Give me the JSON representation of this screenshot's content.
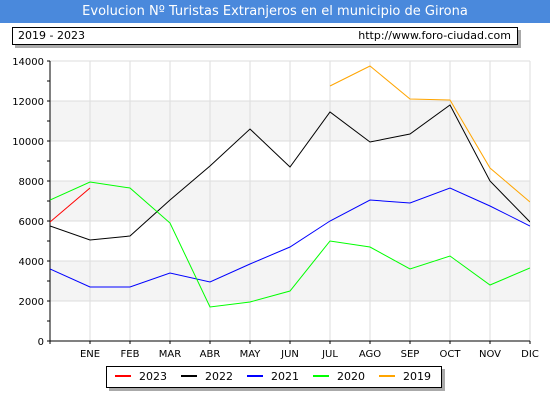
{
  "header": {
    "title": "Evolucion Nº Turistas Extranjeros en el municipio de Girona",
    "period": "2019 - 2023",
    "url": "http://www.foro-ciudad.com"
  },
  "chart_data": {
    "type": "line",
    "title": "Evolucion Nº Turistas Extranjeros en el municipio de Girona",
    "categories": [
      "ENE",
      "FEB",
      "MAR",
      "ABR",
      "MAY",
      "JUN",
      "JUL",
      "AGO",
      "SEP",
      "OCT",
      "NOV",
      "DIC"
    ],
    "y_ticks": [
      "0",
      "2000",
      "4000",
      "6000",
      "8000",
      "10000",
      "12000",
      "14000"
    ],
    "ylim": [
      0,
      14000
    ],
    "grid": true,
    "legend_position": "bottom",
    "series": [
      {
        "name": "2023",
        "color": "#ff0000",
        "x": [
          "",
          "ENE"
        ],
        "values": [
          5950,
          7650
        ]
      },
      {
        "name": "2022",
        "color": "#000000",
        "x": [
          "",
          "ENE",
          "FEB",
          "MAR",
          "ABR",
          "MAY",
          "JUN",
          "JUL",
          "AGO",
          "SEP",
          "OCT",
          "NOV",
          "DIC"
        ],
        "values": [
          5750,
          5050,
          5250,
          7050,
          8750,
          10600,
          8700,
          11450,
          9950,
          10350,
          11800,
          8000,
          5950
        ]
      },
      {
        "name": "2021",
        "color": "#0000ff",
        "x": [
          "",
          "ENE",
          "FEB",
          "MAR",
          "ABR",
          "MAY",
          "JUN",
          "JUL",
          "AGO",
          "SEP",
          "OCT",
          "NOV",
          "DIC"
        ],
        "values": [
          3600,
          2700,
          2700,
          3400,
          2950,
          3850,
          4700,
          6000,
          7050,
          6900,
          7650,
          6750,
          5750
        ]
      },
      {
        "name": "2020",
        "color": "#00ff00",
        "x": [
          "",
          "ENE",
          "FEB",
          "MAR",
          "ABR",
          "MAY",
          "JUN",
          "JUL",
          "AGO",
          "SEP",
          "OCT",
          "NOV",
          "DIC"
        ],
        "values": [
          7050,
          7950,
          7650,
          5900,
          1700,
          1950,
          2500,
          5000,
          4700,
          3600,
          4250,
          2800,
          3650
        ]
      },
      {
        "name": "2019",
        "color": "#ffa500",
        "x": [
          "JUL",
          "AGO",
          "SEP",
          "OCT",
          "NOV",
          "DIC"
        ],
        "values": [
          12750,
          13750,
          12100,
          12050,
          8650,
          6950
        ]
      }
    ]
  }
}
